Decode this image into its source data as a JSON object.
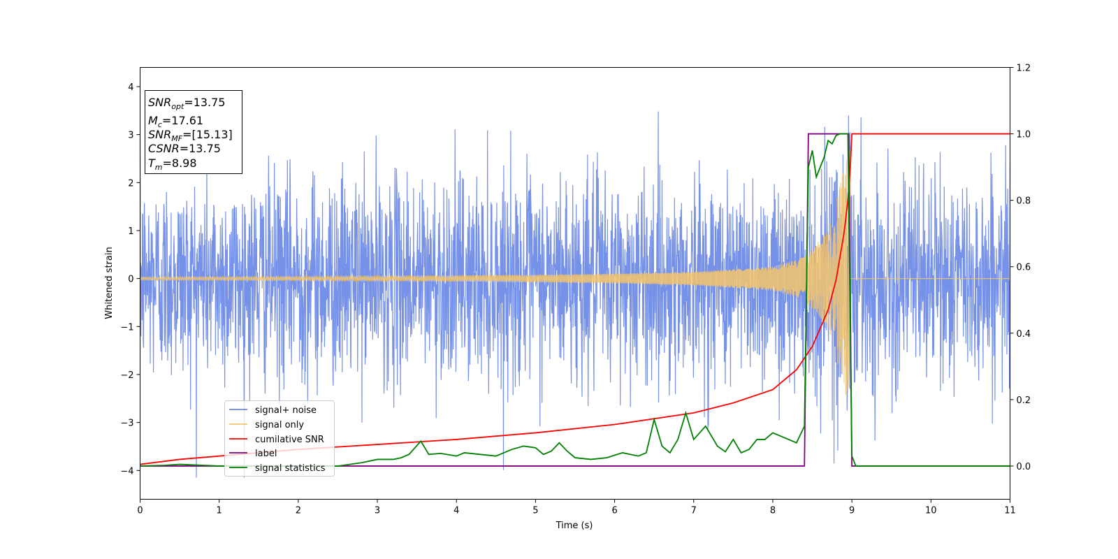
{
  "chart_data": {
    "type": "line",
    "title": "",
    "xlabel": "Time (s)",
    "ylabel": "Whitened strain",
    "xlim": [
      0,
      11
    ],
    "ylim": [
      -4.6,
      4.4
    ],
    "y2lim": [
      -0.1,
      1.2
    ],
    "x_ticks": [
      "0",
      "1",
      "2",
      "3",
      "4",
      "5",
      "6",
      "7",
      "8",
      "9",
      "10",
      "11"
    ],
    "y_ticks": [
      "4",
      "3",
      "2",
      "1",
      "0",
      "−1",
      "−2",
      "−3",
      "−4"
    ],
    "y2_ticks": [
      "1.2",
      "1.0",
      "0.8",
      "0.6",
      "0.4",
      "0.2",
      "0.0"
    ],
    "grid": false,
    "legend_placement": "lower-left",
    "series": [
      {
        "name": "signal+ noise",
        "axis": "left",
        "color": "#6a88e6",
        "description": "Whitened strain noise fluctuating roughly between -4 and 4 across the full time range",
        "envelope_typical": [
          -2.2,
          2.2
        ],
        "peaks_max": 3.98,
        "peaks_min": -4.15
      },
      {
        "name": "signal only",
        "axis": "left",
        "color": "#f5c46b",
        "description": "Chirp waveform with growing amplitude ending at merger",
        "x": [
          0,
          1,
          2,
          3,
          4,
          5,
          6,
          7,
          8,
          8.4,
          8.7,
          8.98,
          9.0,
          11
        ],
        "amplitude": [
          0.03,
          0.035,
          0.04,
          0.05,
          0.06,
          0.075,
          0.1,
          0.14,
          0.25,
          0.45,
          1.0,
          2.8,
          0,
          0
        ]
      },
      {
        "name": "cumilative SNR",
        "axis": "right",
        "color": "#ff0000",
        "x": [
          0,
          0.5,
          1,
          2,
          3,
          4,
          5,
          6,
          7,
          7.5,
          8,
          8.3,
          8.5,
          8.7,
          8.8,
          8.9,
          8.95,
          8.98,
          9.0,
          11
        ],
        "values": [
          0.005,
          0.02,
          0.03,
          0.05,
          0.065,
          0.08,
          0.1,
          0.125,
          0.16,
          0.19,
          0.23,
          0.29,
          0.36,
          0.47,
          0.56,
          0.7,
          0.8,
          0.9,
          1.0,
          1.0
        ]
      },
      {
        "name": "label",
        "axis": "right",
        "color": "#800080",
        "x": [
          0,
          8.4,
          8.45,
          8.96,
          9.0,
          11
        ],
        "values": [
          0,
          0,
          1,
          1,
          0,
          0
        ]
      },
      {
        "name": "signal statistics",
        "axis": "right",
        "color": "#008000",
        "x": [
          0,
          0.3,
          0.5,
          1,
          1.5,
          2,
          2.5,
          2.8,
          3.0,
          3.2,
          3.3,
          3.4,
          3.55,
          3.65,
          3.8,
          4.0,
          4.1,
          4.3,
          4.5,
          4.7,
          4.85,
          5.0,
          5.1,
          5.2,
          5.3,
          5.4,
          5.5,
          5.7,
          5.9,
          6.1,
          6.3,
          6.4,
          6.5,
          6.6,
          6.7,
          6.8,
          6.9,
          7.0,
          7.15,
          7.3,
          7.4,
          7.5,
          7.6,
          7.7,
          7.8,
          7.9,
          8.0,
          8.1,
          8.2,
          8.3,
          8.4,
          8.45,
          8.5,
          8.55,
          8.6,
          8.65,
          8.7,
          8.75,
          8.8,
          8.85,
          8.9,
          8.95,
          9.0,
          9.05,
          11
        ],
        "values": [
          0,
          0.002,
          0.005,
          0,
          0,
          0,
          0,
          0.01,
          0.02,
          0.02,
          0.025,
          0.035,
          0.075,
          0.035,
          0.038,
          0.03,
          0.04,
          0.035,
          0.03,
          0.05,
          0.06,
          0.055,
          0.035,
          0.045,
          0.07,
          0.045,
          0.025,
          0.02,
          0.025,
          0.04,
          0.03,
          0.04,
          0.14,
          0.06,
          0.04,
          0.08,
          0.16,
          0.08,
          0.12,
          0.06,
          0.043,
          0.08,
          0.04,
          0.05,
          0.08,
          0.08,
          0.1,
          0.09,
          0.08,
          0.07,
          0.12,
          0.9,
          0.95,
          0.87,
          0.9,
          0.93,
          0.98,
          0.97,
          0.995,
          1.0,
          1.0,
          1.0,
          0.03,
          0,
          0
        ]
      }
    ],
    "annotation": {
      "snr_opt": "13.75",
      "mc": "17.61",
      "snr_mf": "[15.13]",
      "csnr": "13.75",
      "tm": "8.98"
    }
  }
}
